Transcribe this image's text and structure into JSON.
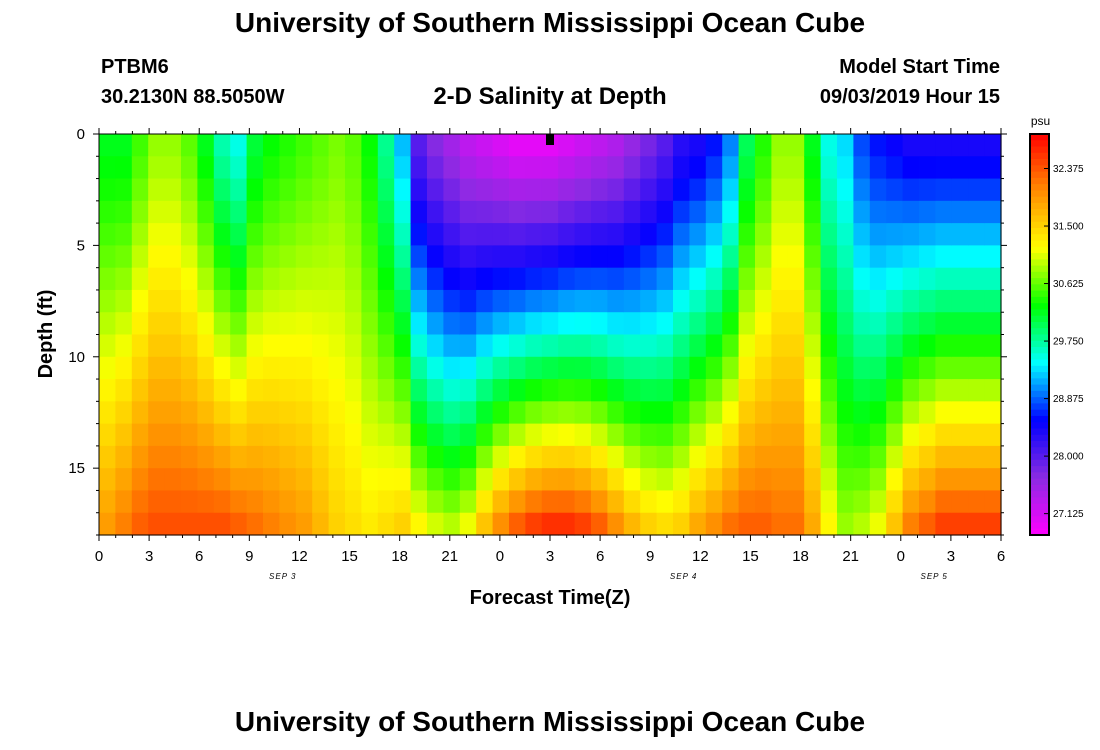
{
  "header": {
    "title": "University of Southern Mississippi Ocean Cube",
    "station_id": "PTBM6",
    "station_coords": "30.2130N 88.5050W",
    "chart_title": "2-D Salinity at Depth",
    "start_label": "Model Start Time",
    "start_value": "09/03/2019 Hour 15"
  },
  "footer": {
    "title": "University of Southern Mississippi Ocean Cube"
  },
  "chart_data": {
    "type": "heatmap",
    "title": "2-D Salinity at Depth",
    "xlabel": "Forecast Time(Z)",
    "ylabel": "Depth (ft)",
    "x_tick_labels": [
      "0",
      "3",
      "6",
      "9",
      "12",
      "15",
      "18",
      "21",
      "0",
      "3",
      "6",
      "9",
      "12",
      "15",
      "18",
      "21",
      "0",
      "3",
      "6"
    ],
    "x_day_labels": [
      {
        "label": "SEP 3",
        "at_hour": 11
      },
      {
        "label": "SEP 4",
        "at_hour": 35
      },
      {
        "label": "SEP 5",
        "at_hour": 50
      }
    ],
    "x_range_hours": [
      0,
      54
    ],
    "y_tick_labels": [
      "0",
      "5",
      "10",
      "15"
    ],
    "y_range_ft": [
      0,
      18
    ],
    "y_inverted": true,
    "colorbar": {
      "unit": "psu",
      "range": [
        26.8,
        32.9
      ],
      "tick_labels": [
        "32.375",
        "31.500",
        "30.625",
        "29.750",
        "28.875",
        "28.000",
        "27.125"
      ],
      "colors": [
        "#ff00ff",
        "#8a2be2",
        "#0000ff",
        "#00ffff",
        "#00ff00",
        "#ffff00",
        "#ff8c00",
        "#ff0000"
      ]
    },
    "model_start_marker_hour": 27,
    "surface_salinity_psu": [
      30.2,
      30.2,
      30.5,
      30.8,
      30.8,
      30.6,
      30.2,
      29.7,
      29.5,
      30.1,
      30.3,
      30.4,
      30.5,
      30.6,
      30.7,
      30.6,
      30.3,
      29.8,
      29.2,
      28.0,
      27.7,
      27.5,
      27.3,
      27.2,
      27.1,
      27.0,
      27.0,
      27.0,
      27.1,
      27.2,
      27.3,
      27.4,
      27.6,
      27.8,
      28.0,
      28.3,
      28.4,
      28.6,
      29.0,
      30.0,
      30.4,
      30.8,
      30.8,
      30.2,
      29.5,
      29.3,
      28.8,
      28.6,
      28.5,
      28.4,
      28.4,
      28.4,
      28.4,
      28.4,
      28.4
    ],
    "bottom_salinity_psu": [
      31.9,
      32.1,
      32.3,
      32.4,
      32.4,
      32.4,
      32.4,
      32.4,
      32.3,
      32.2,
      32.1,
      32.0,
      31.9,
      31.7,
      31.5,
      31.4,
      31.3,
      31.4,
      31.5,
      31.2,
      31.0,
      30.9,
      31.1,
      31.6,
      32.0,
      32.3,
      32.5,
      32.6,
      32.6,
      32.5,
      32.3,
      32.0,
      31.7,
      31.5,
      31.4,
      31.5,
      31.8,
      32.0,
      32.2,
      32.3,
      32.3,
      32.2,
      32.2,
      31.8,
      31.2,
      30.8,
      30.9,
      31.1,
      31.6,
      32.1,
      32.3,
      32.5,
      32.5,
      32.5,
      32.5
    ]
  }
}
